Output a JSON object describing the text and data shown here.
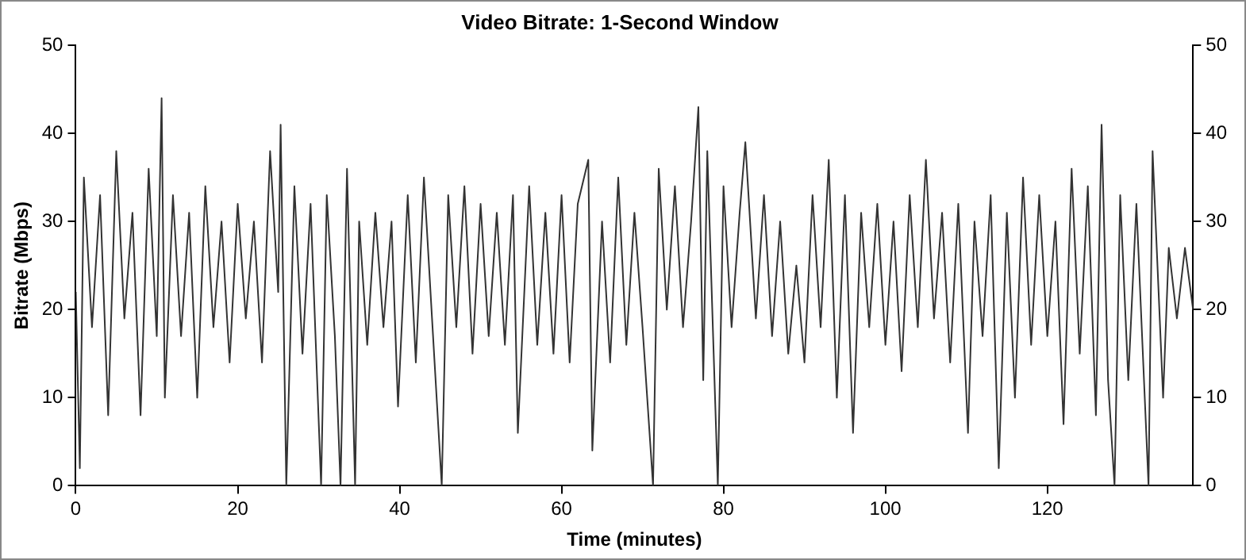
{
  "chart_data": {
    "type": "line",
    "title": "Video Bitrate: 1-Second Window",
    "xlabel": "Time (minutes)",
    "ylabel": "Bitrate (Mbps)",
    "xlim": [
      0,
      138
    ],
    "xticks": [
      0,
      20,
      40,
      60,
      80,
      100,
      120
    ],
    "ylim": [
      0,
      50
    ],
    "yticks": [
      0,
      10,
      20,
      30,
      40,
      50
    ],
    "y2lim": [
      0,
      50
    ],
    "y2ticks": [
      0,
      10,
      20,
      30,
      40,
      50
    ],
    "grid": false,
    "legend": false,
    "marker": "none",
    "line_style": "solid",
    "series": [
      {
        "color": "#333333",
        "x": [
          0,
          0.5,
          1,
          2,
          3,
          4,
          5,
          6,
          7,
          8,
          9,
          10,
          10.6,
          11,
          12,
          13,
          14,
          15,
          16,
          17,
          18,
          19,
          20,
          21,
          22,
          23,
          24,
          25,
          25.3,
          26,
          27,
          28,
          29,
          30.3,
          31,
          32,
          32.7,
          33.5,
          34.5,
          35,
          36,
          37,
          38,
          39,
          39.8,
          41,
          42,
          43,
          44,
          45.2,
          46,
          47,
          48,
          49,
          50,
          51,
          52,
          53,
          54,
          54.6,
          56,
          57,
          58,
          59,
          60,
          61,
          62,
          63.3,
          63.8,
          65,
          66,
          67,
          68,
          69,
          70,
          71.3,
          72,
          73,
          74,
          75,
          76,
          76.9,
          77.5,
          78,
          79.3,
          80,
          81,
          82,
          82.7,
          84,
          85,
          86,
          87,
          88,
          89,
          90,
          91,
          92,
          93,
          94,
          95,
          96,
          97,
          98,
          99,
          100,
          101,
          102,
          103,
          104,
          105,
          106,
          107,
          108,
          109,
          110.2,
          111,
          112,
          113,
          114,
          115,
          116,
          117,
          118,
          119,
          120,
          121,
          122,
          123,
          124,
          125,
          126,
          126.7,
          127.5,
          128.3,
          129,
          130,
          131,
          132.5,
          133,
          134.3,
          135,
          136,
          137,
          138
        ],
        "values": [
          22,
          2,
          35,
          18,
          33,
          8,
          38,
          19,
          31,
          8,
          36,
          17,
          44,
          10,
          33,
          17,
          31,
          10,
          34,
          18,
          30,
          14,
          32,
          19,
          30,
          14,
          38,
          22,
          41,
          0,
          34,
          15,
          32,
          0,
          33,
          17,
          0,
          36,
          0,
          30,
          16,
          31,
          18,
          30,
          9,
          33,
          14,
          35,
          19,
          0,
          33,
          18,
          34,
          15,
          32,
          17,
          31,
          16,
          33,
          6,
          34,
          16,
          31,
          15,
          33,
          14,
          32,
          37,
          4,
          30,
          14,
          35,
          16,
          31,
          18,
          0,
          36,
          20,
          34,
          18,
          30,
          43,
          12,
          38,
          0,
          34,
          18,
          31,
          39,
          19,
          33,
          17,
          30,
          15,
          25,
          14,
          33,
          18,
          37,
          10,
          33,
          6,
          31,
          18,
          32,
          16,
          30,
          13,
          33,
          18,
          37,
          19,
          31,
          14,
          32,
          6,
          30,
          17,
          33,
          2,
          31,
          10,
          35,
          16,
          33,
          17,
          30,
          7,
          36,
          15,
          34,
          8,
          41,
          12,
          0,
          33,
          12,
          32,
          0,
          38,
          10,
          27,
          19,
          27,
          20
        ]
      }
    ]
  }
}
